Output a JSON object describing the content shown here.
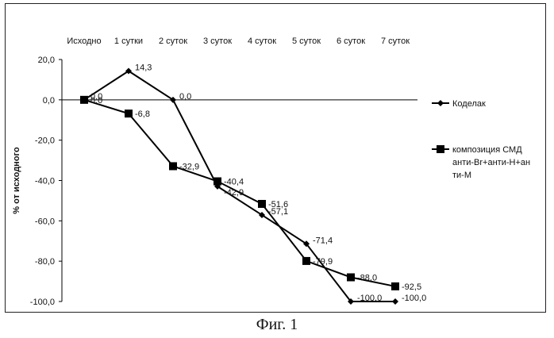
{
  "caption": "Фиг. 1",
  "chart_data": {
    "type": "line",
    "categories": [
      "Исходно",
      "1 сутки",
      "2 суток",
      "3 суток",
      "4 суток",
      "5 суток",
      "6 суток",
      "7 суток"
    ],
    "ylabel": "% от исходного",
    "ylim": [
      -100,
      20
    ],
    "yticks": [
      20,
      0,
      -20,
      -40,
      -60,
      -80,
      -100
    ],
    "ytick_labels": [
      "20,0",
      "0,0",
      "-20,0",
      "-40,0",
      "-60,0",
      "-80,0",
      "-100,0"
    ],
    "grid": false,
    "legend_position": "right",
    "series": [
      {
        "name": "Коделак",
        "marker": "diamond",
        "color": "#000000",
        "values": [
          0,
          14.3,
          0,
          -42.9,
          -57.1,
          -71.4,
          -100,
          -100
        ],
        "labels": [
          "0,0",
          "14,3",
          "0,0",
          "-42,9",
          "-57,1",
          "-71,4",
          "-100,0",
          "-100,0"
        ]
      },
      {
        "name": "композиция СМД анти-Br+анти-H+анти-M",
        "legend_lines": [
          "композиция СМД",
          "анти-Br+анти-H+ан",
          "ти-M"
        ],
        "marker": "square",
        "color": "#000000",
        "values": [
          0,
          -6.8,
          -32.9,
          -40.4,
          -51.6,
          -79.9,
          -88.0,
          -92.5
        ],
        "labels": [
          "0,0",
          "-6,8",
          "-32,9",
          "-40,4",
          "-51,6",
          "-79,9",
          "-88,0",
          "-92,5"
        ]
      }
    ]
  }
}
